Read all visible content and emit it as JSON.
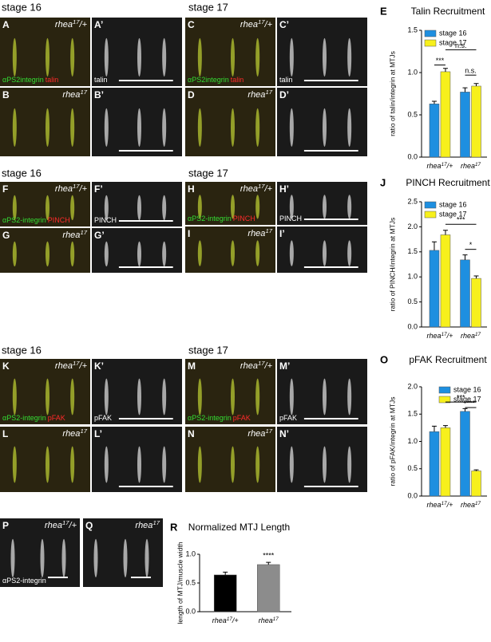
{
  "stage_labels": [
    "stage 16",
    "stage 17",
    "stage 16",
    "stage 17",
    "stage 16",
    "stage 17"
  ],
  "panels": [
    {
      "letter": "A",
      "genotype": {
        "base": "rhea",
        "sup": "17",
        "rest": "/+"
      },
      "stain": [
        {
          "text": "αPS2integrin",
          "color": "#33dd33"
        },
        {
          "text": "talin",
          "color": "#ff2a2a"
        }
      ]
    },
    {
      "letter": "A’",
      "stain": [
        {
          "text": "talin",
          "color": "#ffffff"
        }
      ]
    },
    {
      "letter": "C",
      "genotype": {
        "base": "rhea",
        "sup": "17",
        "rest": "/+"
      },
      "stain": [
        {
          "text": "αPS2integrin",
          "color": "#33dd33"
        },
        {
          "text": "talin",
          "color": "#ff2a2a"
        }
      ]
    },
    {
      "letter": "C’",
      "stain": [
        {
          "text": "talin",
          "color": "#ffffff"
        }
      ]
    },
    {
      "letter": "B",
      "genotype": {
        "base": "rhea",
        "sup": "17"
      }
    },
    {
      "letter": "B’"
    },
    {
      "letter": "D",
      "genotype": {
        "base": "rhea",
        "sup": "17"
      }
    },
    {
      "letter": "D’"
    },
    {
      "letter": "F",
      "genotype": {
        "base": "rhea",
        "sup": "17",
        "rest": "/+"
      },
      "stain": [
        {
          "text": "αPS2-integrin",
          "color": "#33dd33"
        },
        {
          "text": "PINCH",
          "color": "#ff2a2a"
        }
      ]
    },
    {
      "letter": "F’",
      "stain": [
        {
          "text": "PINCH",
          "color": "#ffffff"
        }
      ]
    },
    {
      "letter": "H",
      "genotype": {
        "base": "rhea",
        "sup": "17",
        "rest": "/+"
      },
      "stain": [
        {
          "text": "αPS2-integrin",
          "color": "#33dd33"
        },
        {
          "text": "PINCH",
          "color": "#ff2a2a"
        }
      ]
    },
    {
      "letter": "H’",
      "stain": [
        {
          "text": "PINCH",
          "color": "#ffffff"
        }
      ]
    },
    {
      "letter": "G",
      "genotype": {
        "base": "rhea",
        "sup": "17"
      }
    },
    {
      "letter": "G’"
    },
    {
      "letter": "I",
      "genotype": {
        "base": "rhea",
        "sup": "17"
      }
    },
    {
      "letter": "I’"
    },
    {
      "letter": "K",
      "genotype": {
        "base": "rhea",
        "sup": "17",
        "rest": "/+"
      },
      "stain": [
        {
          "text": "αPS2-integrin",
          "color": "#33dd33"
        },
        {
          "text": "pFAK",
          "color": "#ff2a2a"
        }
      ]
    },
    {
      "letter": "K’",
      "stain": [
        {
          "text": "pFAK",
          "color": "#ffffff"
        }
      ]
    },
    {
      "letter": "M",
      "genotype": {
        "base": "rhea",
        "sup": "17",
        "rest": "/+"
      },
      "stain": [
        {
          "text": "αPS2-integrin",
          "color": "#33dd33"
        },
        {
          "text": "pFAK",
          "color": "#ff2a2a"
        }
      ]
    },
    {
      "letter": "M’",
      "stain": [
        {
          "text": "pFAK",
          "color": "#ffffff"
        }
      ]
    },
    {
      "letter": "L",
      "genotype": {
        "base": "rhea",
        "sup": "17"
      }
    },
    {
      "letter": "L’"
    },
    {
      "letter": "N",
      "genotype": {
        "base": "rhea",
        "sup": "17"
      }
    },
    {
      "letter": "N’"
    },
    {
      "letter": "P",
      "genotype": {
        "base": "rhea",
        "sup": "17",
        "rest": "/+"
      },
      "stain": [
        {
          "text": "αPS2-integrin",
          "color": "#ffffff"
        }
      ]
    },
    {
      "letter": "Q",
      "genotype": {
        "base": "rhea",
        "sup": "17"
      }
    }
  ],
  "chart_data": [
    {
      "type": "bar",
      "letter": "E",
      "title": "Talin Recruitment",
      "y_label": "ratio of talin/integrin at MTJs",
      "categories": [
        {
          "base": "rhea",
          "sup": "17",
          "rest": "/+"
        },
        {
          "base": "rhea",
          "sup": "17"
        }
      ],
      "series": [
        {
          "name": "stage 16",
          "color": "#1e8fe0",
          "values": [
            0.63,
            0.77
          ],
          "errors": [
            0.03,
            0.05
          ]
        },
        {
          "name": "stage 17",
          "color": "#f7f01c",
          "values": [
            1.01,
            0.84
          ],
          "errors": [
            0.04,
            0.03
          ]
        }
      ],
      "ylim": [
        0,
        1.5
      ],
      "yticks": [
        {
          "value": 0,
          "label": "0.0"
        },
        0.5,
        {
          "value": 1,
          "label": "1.0"
        },
        1.5
      ],
      "annotations": [
        "***",
        "n.s.",
        "n.s."
      ],
      "legend": "upper left"
    },
    {
      "type": "bar",
      "letter": "J",
      "title": "PINCH Recruitment",
      "y_label": "ratio of PINCH/integrin at MTJs",
      "categories": [
        {
          "base": "rhea",
          "sup": "17",
          "rest": "/+"
        },
        {
          "base": "rhea",
          "sup": "17"
        }
      ],
      "series": [
        {
          "name": "stage 16",
          "color": "#1e8fe0",
          "values": [
            1.53,
            1.34
          ],
          "errors": [
            0.17,
            0.1
          ]
        },
        {
          "name": "stage 17",
          "color": "#f7f01c",
          "values": [
            1.84,
            0.97
          ],
          "errors": [
            0.09,
            0.05
          ]
        }
      ],
      "ylim": [
        0,
        2.5
      ],
      "yticks": [
        {
          "value": 0,
          "label": "0.0"
        },
        0.5,
        {
          "value": 1,
          "label": "1.0"
        },
        1.5,
        {
          "value": 2,
          "label": "2.0"
        },
        2.5
      ],
      "annotations": [
        "***",
        "*"
      ],
      "legend": "upper left"
    },
    {
      "type": "bar",
      "letter": "O",
      "title": "pFAK Recruitment",
      "y_label": "ratio of pFAK/integrin at MTJs",
      "categories": [
        {
          "base": "rhea",
          "sup": "17",
          "rest": "/+"
        },
        {
          "base": "rhea",
          "sup": "17"
        }
      ],
      "series": [
        {
          "name": "stage 16",
          "color": "#1e8fe0",
          "values": [
            1.18,
            1.55
          ],
          "errors": [
            0.1,
            0.05
          ]
        },
        {
          "name": "stage 17",
          "color": "#f7f01c",
          "values": [
            1.25,
            0.46
          ],
          "errors": [
            0.04,
            0.02
          ]
        }
      ],
      "ylim": [
        0,
        2
      ],
      "yticks": [
        {
          "value": 0,
          "label": "0.0"
        },
        0.5,
        {
          "value": 1,
          "label": "1.0"
        },
        1.5,
        {
          "value": 2,
          "label": "2.0"
        }
      ],
      "annotations": [
        "***",
        "***"
      ],
      "legend": "upper right"
    },
    {
      "type": "bar",
      "letter": "R",
      "title": "Normalized  MTJ Length",
      "y_label": "length of MTJ/muscle width",
      "categories": [
        {
          "base": "rhea",
          "sup": "17",
          "rest": "/+"
        },
        {
          "base": "rhea",
          "sup": "17"
        }
      ],
      "values": [
        0.64,
        0.82
      ],
      "errors": [
        0.05,
        0.04
      ],
      "colors": [
        "#000000",
        "#8c8c8c"
      ],
      "ylim": [
        0,
        1
      ],
      "yticks": [
        {
          "value": 0,
          "label": "0.0"
        },
        0.5,
        {
          "value": 1,
          "label": "1.0"
        }
      ],
      "annotations": [
        "****"
      ]
    }
  ]
}
